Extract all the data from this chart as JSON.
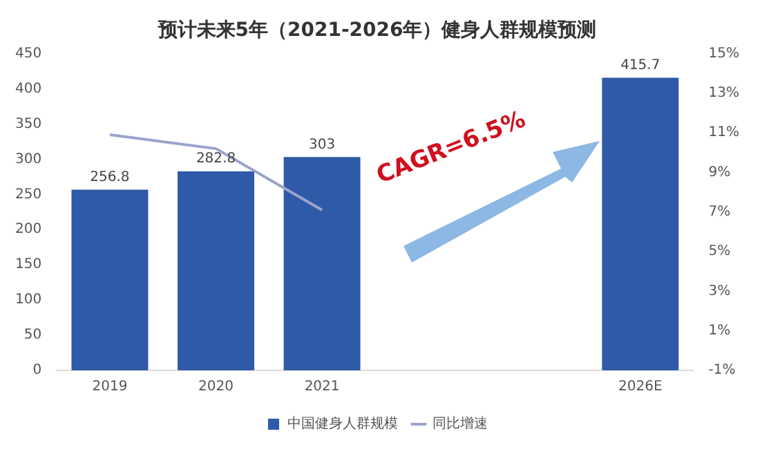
{
  "chart_data": {
    "type": "bar",
    "title": "预计未来5年（2021-2026年）健身人群规模预测",
    "categories": [
      "2019",
      "2020",
      "2021",
      null,
      null,
      "2026E"
    ],
    "series": [
      {
        "name": "中国健身人群规模",
        "color": "#2f5aa8",
        "values": [
          256.8,
          282.8,
          303,
          null,
          null,
          415.7
        ],
        "value_labels": [
          "256.8",
          "282.8",
          "303",
          null,
          null,
          "415.7"
        ]
      },
      {
        "name": "同比增速",
        "type": "line",
        "axis": "y2",
        "color": "#9aa3cc",
        "values": [
          10.9,
          10.2,
          7.1,
          null,
          null,
          null
        ]
      }
    ],
    "ylim": [
      0,
      450
    ],
    "yticks": [
      0,
      50,
      100,
      150,
      200,
      250,
      300,
      350,
      400,
      450
    ],
    "y2lim": [
      -1,
      15
    ],
    "y2ticks": [
      {
        "value": -1,
        "label": "-1%"
      },
      {
        "value": 1,
        "label": "1%"
      },
      {
        "value": 3,
        "label": "3%"
      },
      {
        "value": 5,
        "label": "5%"
      },
      {
        "value": 7,
        "label": "7%"
      },
      {
        "value": 9,
        "label": "9%"
      },
      {
        "value": 11,
        "label": "11%"
      },
      {
        "value": 13,
        "label": "13%"
      },
      {
        "value": 15,
        "label": "15%"
      }
    ],
    "annotations": [
      "CAGR=6.5%"
    ],
    "legend": "bottom",
    "grid": false,
    "marker": "none"
  }
}
